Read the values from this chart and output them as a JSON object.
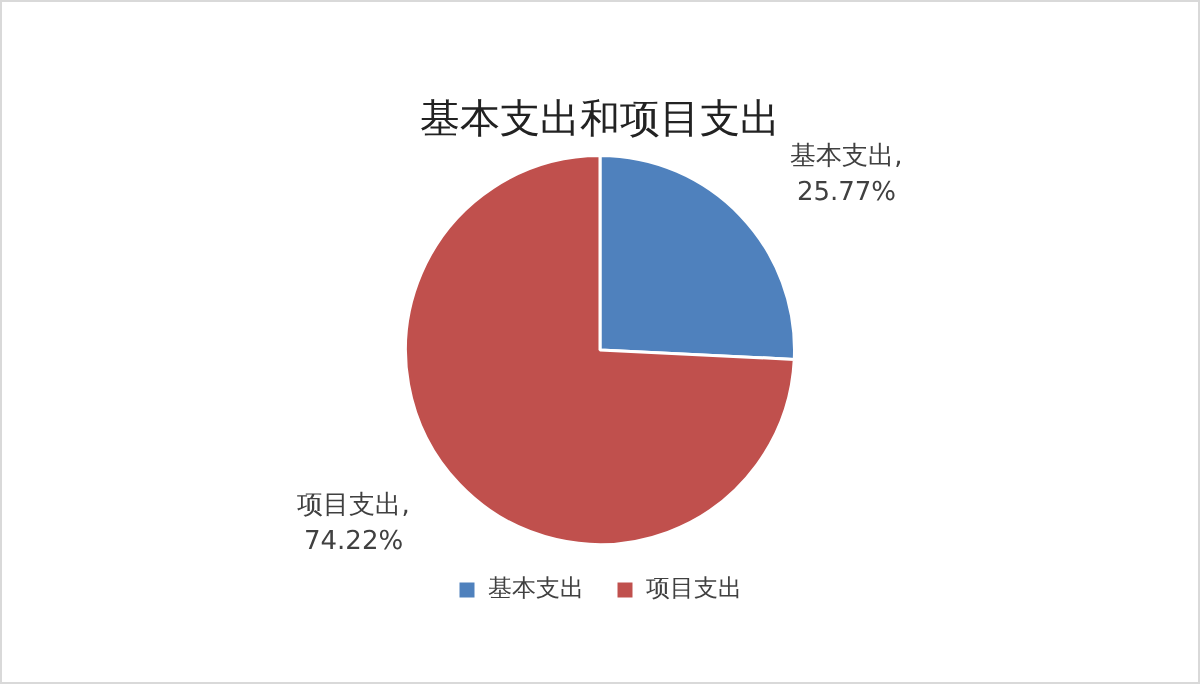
{
  "chart_data": {
    "type": "pie",
    "title": "基本支出和项目支出",
    "categories": [
      "基本支出",
      "项目支出"
    ],
    "values": [
      25.77,
      74.22
    ],
    "colors": [
      "#4f81bd",
      "#c0504d"
    ],
    "value_labels": [
      "基本支出, 25.77%",
      "项目支出, 74.22%"
    ],
    "legend": "bottom"
  }
}
